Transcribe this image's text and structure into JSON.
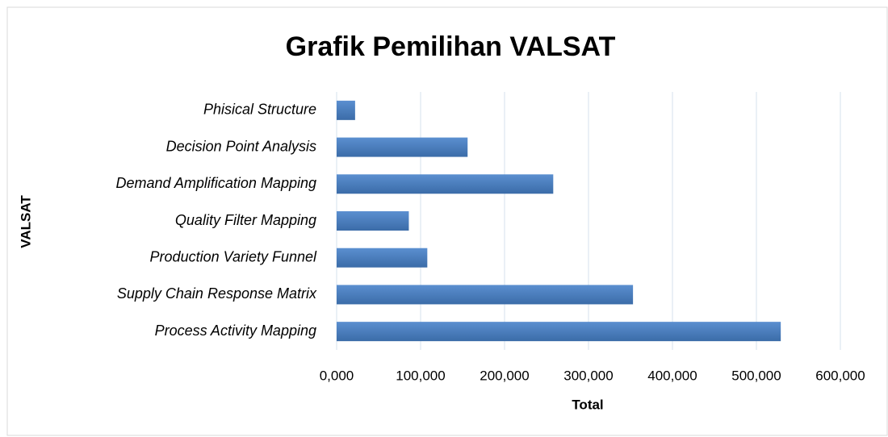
{
  "chart_data": {
    "type": "bar",
    "orientation": "horizontal",
    "title": "Grafik Pemilihan VALSAT",
    "x_label": "Total",
    "y_label": "VALSAT",
    "categories": [
      "Phisical Structure",
      "Decision Point Analysis",
      "Demand Amplification Mapping",
      "Quality Filter Mapping",
      "Production Variety Funnel",
      "Supply Chain Response Matrix",
      "Process Activity Mapping"
    ],
    "values": [
      22000,
      156000,
      258000,
      86000,
      108000,
      353000,
      529000
    ],
    "color": "#4a7ebb",
    "xlim": [
      0,
      600000
    ],
    "xticks": [
      {
        "value": 0,
        "label": "0,000"
      },
      {
        "value": 100000,
        "label": "100,000"
      },
      {
        "value": 200000,
        "label": "200,000"
      },
      {
        "value": 300000,
        "label": "300,000"
      },
      {
        "value": 400000,
        "label": "400,000"
      },
      {
        "value": 500000,
        "label": "500,000"
      },
      {
        "value": 600000,
        "label": "600,000"
      }
    ],
    "grid": true
  }
}
